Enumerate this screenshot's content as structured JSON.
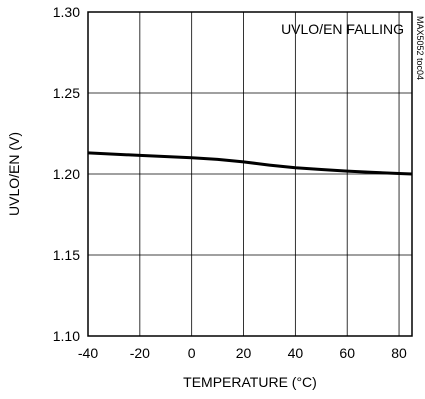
{
  "chart_data": {
    "type": "line",
    "title": "",
    "xlabel": "TEMPERATURE (°C)",
    "ylabel": "UVLO/EN (V)",
    "xlim": [
      -40,
      85
    ],
    "ylim": [
      1.1,
      1.3
    ],
    "x_ticks": [
      -40,
      -20,
      0,
      20,
      40,
      60,
      80
    ],
    "y_ticks": [
      1.1,
      1.15,
      1.2,
      1.25,
      1.3
    ],
    "x_tick_labels": [
      "-40",
      "-20",
      "0",
      "20",
      "40",
      "60",
      "80"
    ],
    "y_tick_labels": [
      "1.10",
      "1.15",
      "1.20",
      "1.25",
      "1.30"
    ],
    "grid": true,
    "annotation": "UVLO/EN FALLING",
    "side_label": "MAX5052 toc04",
    "series": [
      {
        "name": "",
        "color": "#000000",
        "x": [
          -40,
          -20,
          0,
          10,
          20,
          25,
          30,
          40,
          50,
          60,
          70,
          80,
          85
        ],
        "y": [
          1.213,
          1.2115,
          1.21,
          1.209,
          1.2075,
          1.2065,
          1.2055,
          1.2038,
          1.2028,
          1.2018,
          1.201,
          1.2003,
          1.2
        ]
      }
    ]
  }
}
